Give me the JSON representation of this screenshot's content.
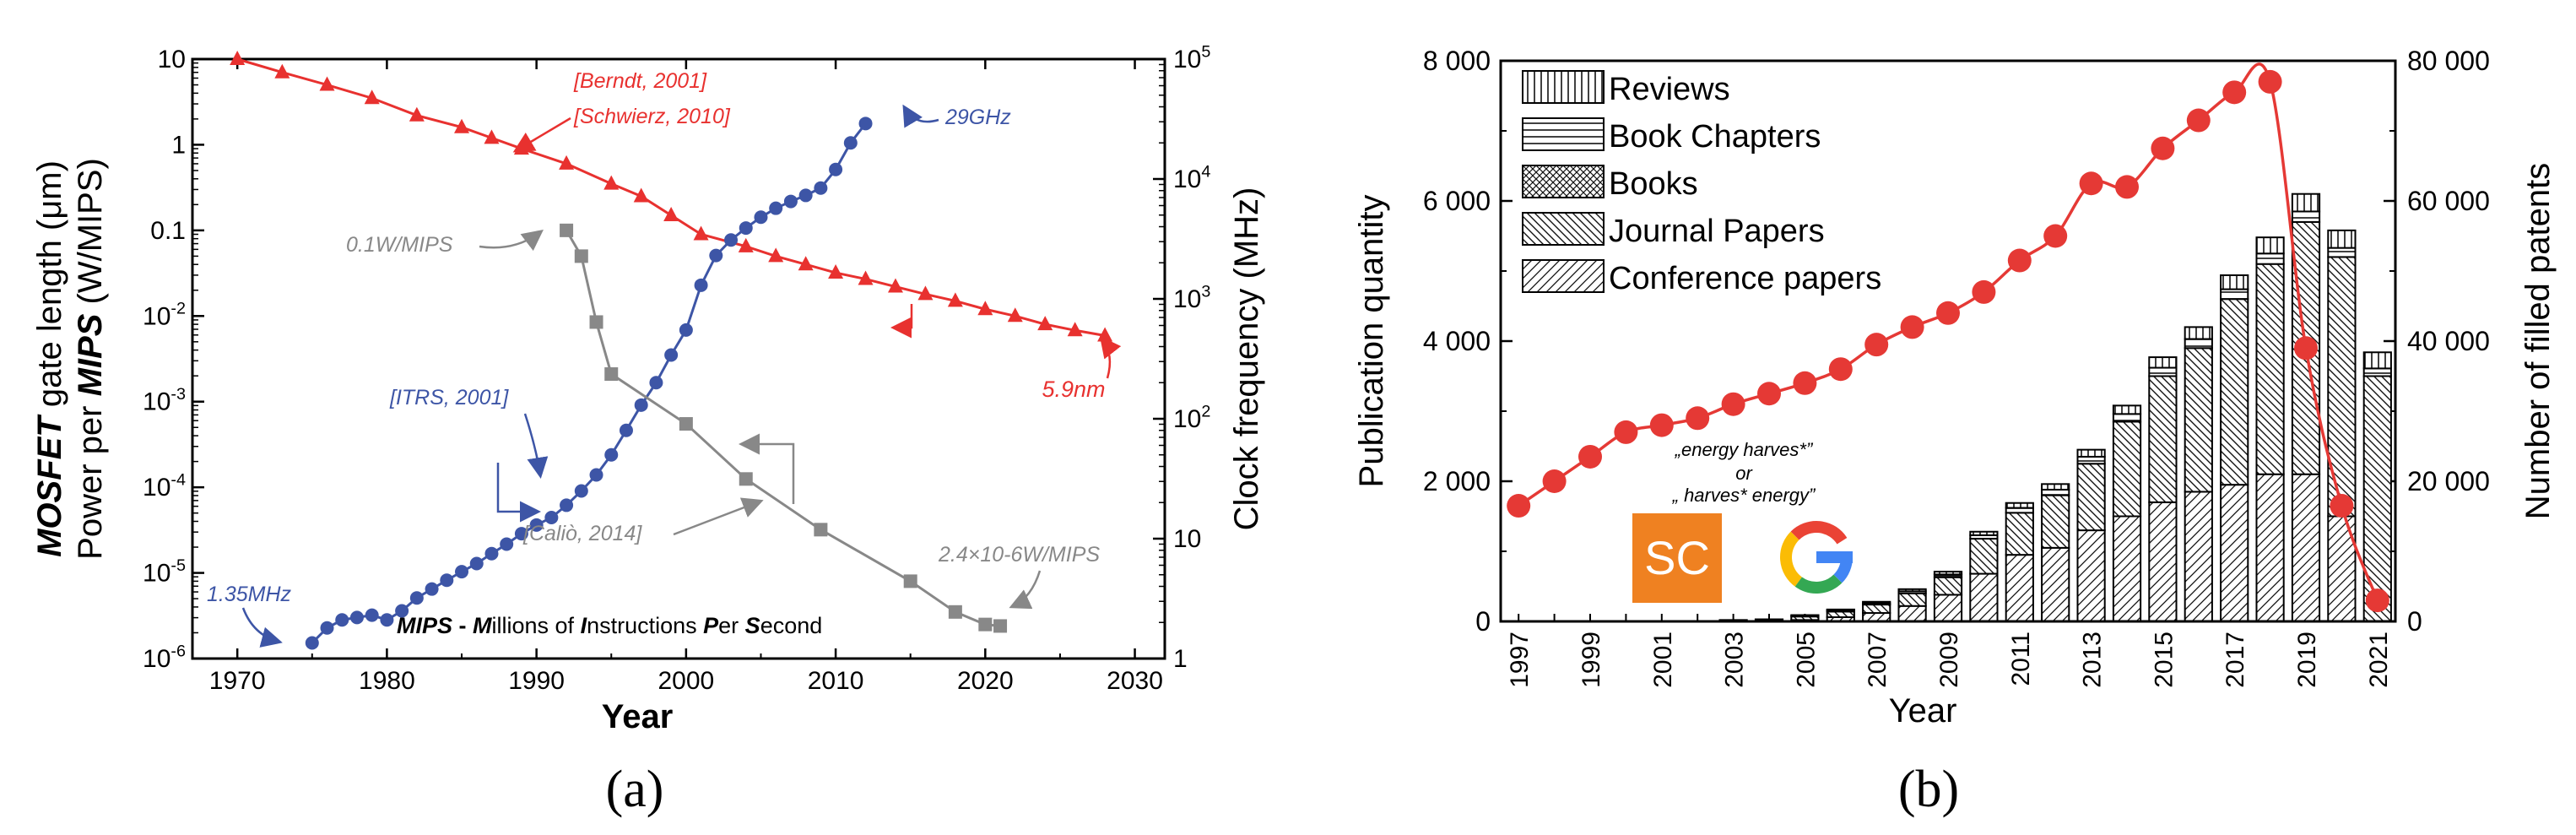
{
  "chart_data": [
    {
      "panel_label": "(a)",
      "type": "line",
      "xlabel": "Year",
      "ylabel_left_bold": "MOSFET",
      "ylabel_left_rest": " gate length (μm)",
      "ylabel_left2_pre": "Power per ",
      "ylabel_left2_bold": "MIPS",
      "ylabel_left2_post": " (W/MIPS)",
      "ylabel_right": "Clock frequency (MHz)",
      "xlim": [
        1967,
        2032
      ],
      "ylim_left": [
        1e-06,
        10
      ],
      "ylim_right": [
        1,
        100000
      ],
      "x_ticks": [
        1970,
        1980,
        1990,
        2000,
        2010,
        2020,
        2030
      ],
      "y_left_ticks": [
        "10",
        "1",
        "0.1",
        "10-2",
        "10-3",
        "10-4",
        "10-5",
        "10-6"
      ],
      "y_right_ticks": [
        "105",
        "104",
        "103",
        "102",
        "10",
        "1"
      ],
      "series": [
        {
          "name": "MOSFET gate length",
          "axis": "left",
          "color": "#e8312f",
          "marker": "triangle",
          "x": [
            1970,
            1973,
            1976,
            1979,
            1982,
            1985,
            1987,
            1989,
            1992,
            1995,
            1997,
            1999,
            2001,
            2004,
            2006,
            2008,
            2010,
            2012,
            2014,
            2016,
            2018,
            2020,
            2022,
            2024,
            2026,
            2028
          ],
          "values": [
            10,
            7,
            5,
            3.5,
            2.2,
            1.6,
            1.2,
            0.9,
            0.6,
            0.35,
            0.25,
            0.15,
            0.09,
            0.065,
            0.05,
            0.04,
            0.032,
            0.027,
            0.022,
            0.018,
            0.015,
            0.012,
            0.01,
            0.008,
            0.0068,
            0.0059
          ]
        },
        {
          "name": "Clock frequency",
          "axis": "right",
          "color": "#3d55a6",
          "marker": "circle",
          "x": [
            1975,
            1976,
            1977,
            1978,
            1979,
            1980,
            1981,
            1982,
            1983,
            1984,
            1985,
            1986,
            1987,
            1988,
            1989,
            1990,
            1991,
            1992,
            1993,
            1994,
            1995,
            1996,
            1997,
            1998,
            1999,
            2000,
            2001,
            2002,
            2003,
            2004,
            2005,
            2006,
            2007,
            2008,
            2009,
            2010,
            2011,
            2012
          ],
          "values": [
            1.35,
            1.8,
            2.1,
            2.2,
            2.3,
            2.1,
            2.5,
            3.2,
            3.8,
            4.5,
            5.3,
            6.2,
            7.5,
            9,
            11,
            13,
            15,
            19,
            25,
            34,
            50,
            80,
            130,
            200,
            340,
            550,
            1300,
            2300,
            3100,
            3900,
            4800,
            5700,
            6500,
            7300,
            8400,
            12000,
            20000,
            29000
          ]
        },
        {
          "name": "Power per MIPS",
          "axis": "left",
          "color": "#888888",
          "marker": "square",
          "x": [
            1992,
            1993,
            1994,
            1995,
            2000,
            2004,
            2009,
            2015,
            2018,
            2020,
            2021
          ],
          "values": [
            0.1,
            0.05,
            0.0085,
            0.0021,
            0.00055,
            0.000125,
            3.2e-05,
            8e-06,
            3.5e-06,
            2.5e-06,
            2.4e-06
          ]
        }
      ],
      "annotations": {
        "berndt": "[Berndt, 2001]",
        "schwierz": "[Schwierz, 2010]",
        "itrs": "[ITRS, 2001]",
        "calio": "[Caliò, 2014]",
        "ghz": "29GHz",
        "nm": "5.9nm",
        "mhz": "1.35MHz",
        "w01": "0.1W/MIPS",
        "w24": "2.4×10-6W/MIPS"
      },
      "mips_note": {
        "p1": "MIPS",
        "p2": " - ",
        "p3": "M",
        "p4": "illions of ",
        "p5": "I",
        "p6": "nstructions ",
        "p7": "P",
        "p8": "er ",
        "p9": "S",
        "p10": "econd"
      }
    },
    {
      "panel_label": "(b)",
      "type": "bar",
      "stacked": true,
      "xlabel": "Year",
      "ylabel": "Publication quantity",
      "ylabel_right": "Number of filled patents",
      "ylim": [
        0,
        8000
      ],
      "ylim_right": [
        0,
        80000
      ],
      "y_ticks": [
        "0",
        "2 000",
        "4 000",
        "6 000",
        "8 000"
      ],
      "y_right_ticks": [
        "0",
        "20 000",
        "40 000",
        "60 000",
        "80 000"
      ],
      "categories": [
        "1997",
        "1998",
        "1999",
        "2000",
        "2001",
        "2002",
        "2003",
        "2004",
        "2005",
        "2006",
        "2007",
        "2008",
        "2009",
        "2010",
        "2011",
        "2012",
        "2013",
        "2014",
        "2015",
        "2016",
        "2017",
        "2018",
        "2019",
        "2020",
        "2021"
      ],
      "x_tick_labels": [
        "1997",
        "1999",
        "2001",
        "2003",
        "2005",
        "2007",
        "2009",
        "2011",
        "2013",
        "2015",
        "2017",
        "2019",
        "2021"
      ],
      "series": [
        {
          "name": "Conference papers",
          "values": [
            0,
            0,
            0,
            0,
            0,
            0,
            0,
            0,
            20,
            60,
            120,
            220,
            380,
            680,
            950,
            1050,
            1300,
            1500,
            1700,
            1850,
            1950,
            2100,
            2100,
            1500,
            0
          ]
        },
        {
          "name": "Journal Papers",
          "values": [
            0,
            0,
            0,
            0,
            0,
            0,
            20,
            30,
            50,
            80,
            120,
            180,
            250,
            500,
            600,
            750,
            950,
            1350,
            1800,
            2050,
            2650,
            3000,
            3600,
            3700,
            3500
          ]
        },
        {
          "name": "Books",
          "values": [
            0,
            0,
            0,
            0,
            0,
            0,
            0,
            0,
            0,
            0,
            0,
            0,
            0,
            0,
            0,
            0,
            0,
            0,
            0,
            0,
            0,
            0,
            0,
            0,
            0
          ]
        },
        {
          "name": "Book Chapters",
          "values": [
            0,
            0,
            0,
            0,
            0,
            0,
            0,
            0,
            10,
            20,
            20,
            30,
            40,
            50,
            70,
            80,
            100,
            110,
            120,
            130,
            140,
            150,
            150,
            130,
            110
          ]
        },
        {
          "name": "Reviews",
          "values": [
            0,
            0,
            0,
            0,
            0,
            0,
            0,
            0,
            10,
            10,
            20,
            30,
            40,
            50,
            70,
            80,
            100,
            120,
            150,
            170,
            200,
            230,
            250,
            250,
            230
          ]
        }
      ],
      "legend": [
        "Reviews",
        "Book Chapters",
        "Books",
        "Journal Papers",
        "Conference papers"
      ],
      "patents": {
        "name": "Number of filled patents",
        "axis": "right",
        "color": "#e53935",
        "values": [
          16500,
          20000,
          23500,
          27000,
          28000,
          29000,
          31000,
          32500,
          34000,
          36000,
          39500,
          42000,
          44000,
          47000,
          51500,
          55000,
          62500,
          62000,
          67500,
          71500,
          75500,
          77000,
          39000,
          16500,
          3000
        ]
      },
      "search_terms": {
        "line1": "„energy harves*”",
        "line2": "or",
        "line3": "„ harves* energy”"
      },
      "logos": {
        "sc": "SC",
        "google": "G"
      },
      "colors": {
        "sc_orange": "#ef8121",
        "google_blue": "#4285f4",
        "google_red": "#ea4335",
        "google_yellow": "#fbbc05",
        "google_green": "#34a853"
      }
    }
  ]
}
